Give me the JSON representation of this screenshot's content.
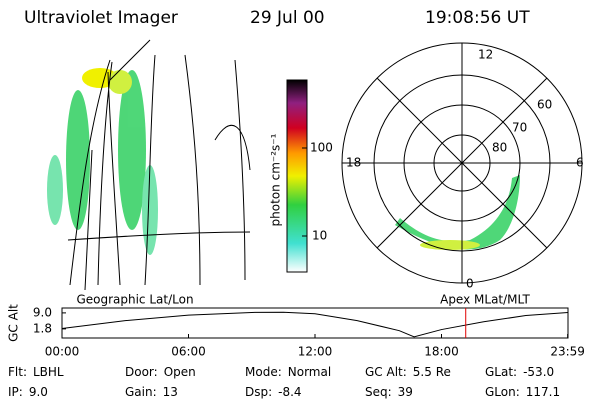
{
  "header": {
    "title": "Ultraviolet Imager",
    "date": "29 Jul 00",
    "time": "19:08:56 UT"
  },
  "colorbar": {
    "label": "photon cm⁻²s⁻¹",
    "ticks": [
      "100",
      "10"
    ]
  },
  "polar": {
    "mlt_labels": [
      "12",
      "6",
      "18",
      "0"
    ],
    "lat_labels": [
      "60",
      "70",
      "80"
    ]
  },
  "panels": {
    "left": "Geographic Lat/Lon",
    "right": "Apex MLat/MLT"
  },
  "timeline": {
    "ylabel": "GC Alt",
    "xlim": [
      0,
      24
    ],
    "ylim": [
      -2.3,
      11.2
    ],
    "yticks": [
      {
        "value": 9,
        "label": "9.0"
      },
      {
        "value": 1.8,
        "label": "1.8"
      }
    ],
    "xticks": [
      {
        "value": 0,
        "label": "00:00"
      },
      {
        "value": 6,
        "label": "06:00"
      },
      {
        "value": 12,
        "label": "12:00"
      },
      {
        "value": 18,
        "label": "18:00"
      },
      {
        "value": 23.983,
        "label": "23:59"
      }
    ],
    "x": [
      0,
      3,
      6,
      9,
      10.5,
      12,
      14,
      16,
      16.7,
      18,
      20,
      22,
      24
    ],
    "values": [
      2.0,
      5.5,
      8.0,
      9.2,
      9.3,
      8.6,
      5.5,
      1.0,
      -1.8,
      1.5,
      5.0,
      7.8,
      9.2
    ],
    "marker": 19.149,
    "marker_color": "#e00000",
    "color": "#000000"
  },
  "footer": [
    [
      {
        "label": "Flt:",
        "value": "LBHL"
      },
      {
        "label": "Door:",
        "value": "Open"
      },
      {
        "label": "Mode:",
        "value": "Normal"
      },
      {
        "label": "GC Alt:",
        "value": "5.5 Re"
      },
      {
        "label": "GLat:",
        "value": "-53.0"
      }
    ],
    [
      {
        "label": "IP:",
        "value": "9.0"
      },
      {
        "label": "Gain:",
        "value": "13"
      },
      {
        "label": "Dsp:",
        "value": "-8.4"
      },
      {
        "label": "Seq:",
        "value": "39"
      },
      {
        "label": "GLon:",
        "value": "117.1"
      }
    ]
  ]
}
